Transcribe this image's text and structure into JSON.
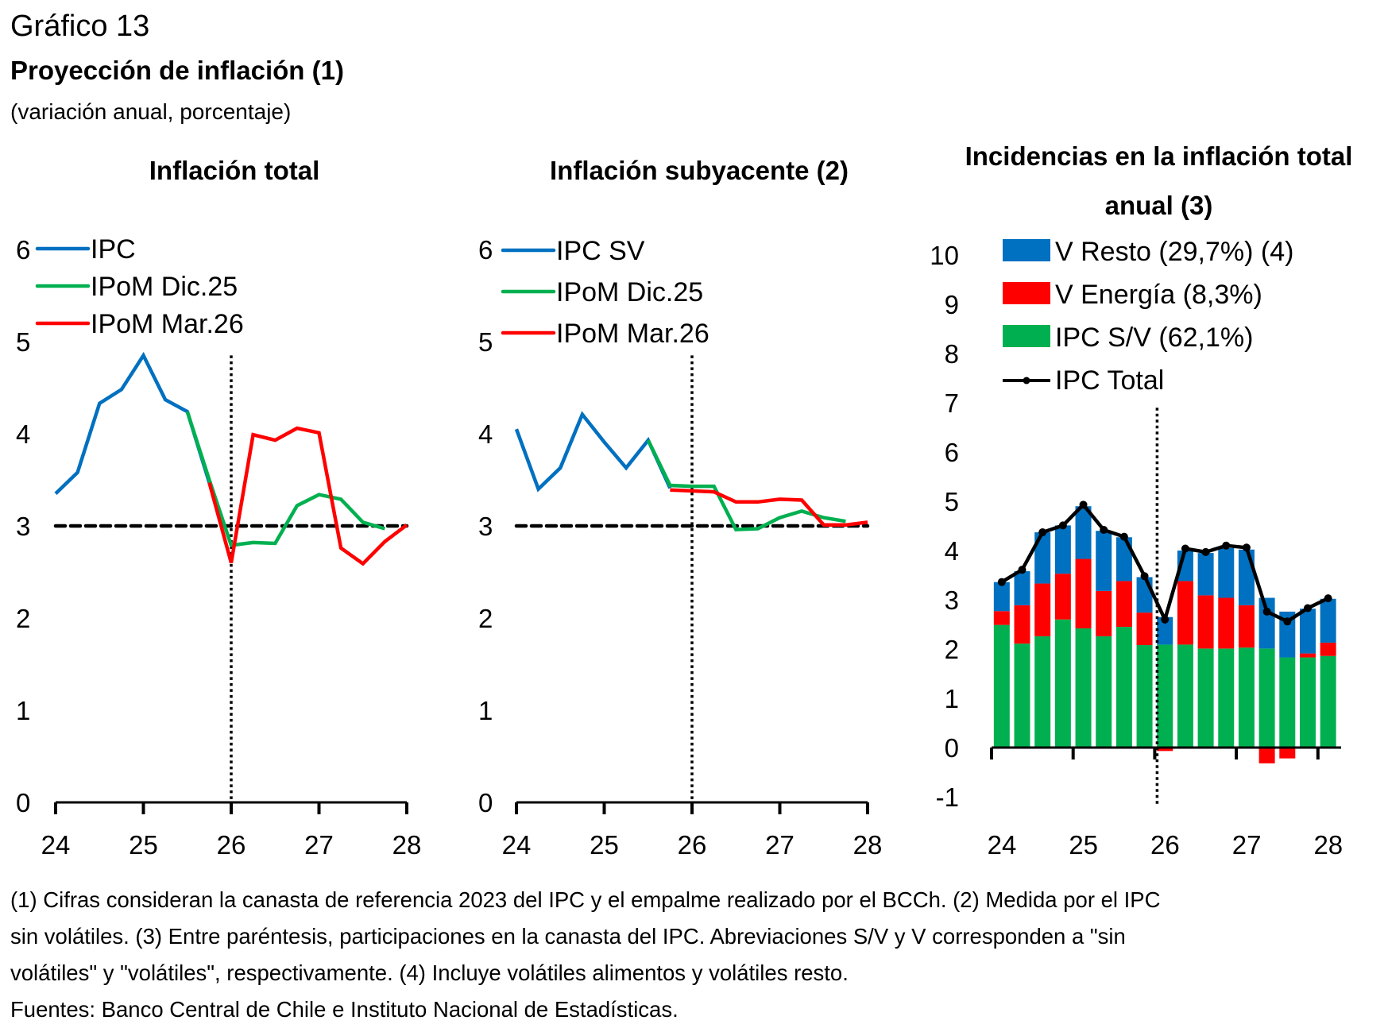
{
  "header": {
    "figure_number": "Gráfico 13",
    "title": "Proyección de inflación (1)",
    "subtitle": "(variación anual, porcentaje)"
  },
  "colors": {
    "blue": "#0070C0",
    "green": "#00B050",
    "red": "#FF0000",
    "black": "#000000"
  },
  "chart_data": [
    {
      "type": "line",
      "title": "Inflación total",
      "xlabel": "",
      "ylabel": "",
      "x_ticks": [
        "24",
        "25",
        "26",
        "27",
        "28"
      ],
      "xlim": [
        24,
        28
      ],
      "y_ticks": [
        "0",
        "1",
        "2",
        "3",
        "4",
        "5",
        "6"
      ],
      "ylim": [
        0,
        6
      ],
      "grid": false,
      "legend_position": "top-left",
      "reference_hline": 3,
      "reference_vline": 26,
      "series": [
        {
          "name": "IPC",
          "color": "blue",
          "x": [
            24.0,
            24.25,
            24.5,
            24.75,
            25.0,
            25.25,
            25.5,
            25.75
          ],
          "values": [
            3.35,
            3.58,
            4.33,
            4.48,
            4.85,
            4.37,
            4.24,
            3.47
          ]
        },
        {
          "name": "IPoM Dic.25",
          "color": "green",
          "x": [
            25.5,
            25.75,
            26.0,
            26.25,
            26.5,
            26.75,
            27.0,
            27.25,
            27.5,
            27.75
          ],
          "values": [
            4.24,
            3.5,
            2.79,
            2.82,
            2.81,
            3.22,
            3.34,
            3.29,
            3.04,
            2.97
          ]
        },
        {
          "name": "IPoM Mar.26",
          "color": "red",
          "x": [
            25.75,
            26.0,
            26.25,
            26.5,
            26.75,
            27.0,
            27.25,
            27.5,
            27.75,
            28.0
          ],
          "values": [
            3.47,
            2.6,
            3.99,
            3.93,
            4.06,
            4.01,
            2.76,
            2.59,
            2.83,
            3.01
          ]
        }
      ]
    },
    {
      "type": "line",
      "title": "Inflación subyacente (2)",
      "xlabel": "",
      "ylabel": "",
      "x_ticks": [
        "24",
        "25",
        "26",
        "27",
        "28"
      ],
      "xlim": [
        24,
        28
      ],
      "y_ticks": [
        "0",
        "1",
        "2",
        "3",
        "4",
        "5",
        "6"
      ],
      "ylim": [
        0,
        6
      ],
      "grid": false,
      "legend_position": "top-left",
      "reference_hline": 3,
      "reference_vline": 26,
      "series": [
        {
          "name": "IPC SV",
          "color": "blue",
          "x": [
            24.0,
            24.25,
            24.5,
            24.75,
            25.0,
            25.25,
            25.5,
            25.75
          ],
          "values": [
            4.05,
            3.4,
            3.63,
            4.21,
            3.91,
            3.63,
            3.93,
            3.41
          ]
        },
        {
          "name": "IPoM Dic.25",
          "color": "green",
          "x": [
            25.5,
            25.75,
            26.0,
            26.25,
            26.5,
            26.75,
            27.0,
            27.25,
            27.5,
            27.75
          ],
          "values": [
            3.93,
            3.44,
            3.43,
            3.43,
            2.96,
            2.97,
            3.09,
            3.16,
            3.09,
            3.05
          ]
        },
        {
          "name": "IPoM Mar.26",
          "color": "red",
          "x": [
            25.75,
            26.0,
            26.25,
            26.5,
            26.75,
            27.0,
            27.25,
            27.5,
            27.75,
            28.0
          ],
          "values": [
            3.39,
            3.38,
            3.37,
            3.26,
            3.26,
            3.29,
            3.28,
            3.01,
            3.01,
            3.04
          ]
        }
      ]
    },
    {
      "type": "bar",
      "stacked": true,
      "title": "Incidencias en la inflación total anual (3)",
      "title_lines": [
        "Incidencias en la inflación total",
        "anual (3)"
      ],
      "xlabel": "",
      "ylabel": "",
      "x_ticks": [
        "24",
        "25",
        "26",
        "27",
        "28"
      ],
      "xlim": [
        24,
        28.25
      ],
      "y_ticks": [
        "-1",
        "0",
        "1",
        "2",
        "3",
        "4",
        "5",
        "6",
        "7",
        "8",
        "9",
        "10"
      ],
      "ylim": [
        -1,
        10
      ],
      "grid": false,
      "legend_position": "top-left",
      "reference_vline": 26,
      "categories": [
        "24.0",
        "24.25",
        "24.5",
        "24.75",
        "25.0",
        "25.25",
        "25.5",
        "25.75",
        "26.0",
        "26.25",
        "26.5",
        "26.75",
        "27.0",
        "27.25",
        "27.5",
        "27.75",
        "28.0"
      ],
      "series": [
        {
          "name": "IPC S/V (62,1%)",
          "color": "green",
          "kind": "bar",
          "values": [
            2.49,
            2.11,
            2.26,
            2.6,
            2.42,
            2.26,
            2.45,
            2.08,
            2.09,
            2.09,
            2.01,
            2.01,
            2.03,
            2.01,
            1.83,
            1.83,
            1.86
          ]
        },
        {
          "name": "V Energía (8,3%)",
          "color": "red",
          "kind": "bar",
          "values": [
            0.28,
            0.78,
            1.07,
            0.93,
            1.41,
            0.92,
            0.93,
            0.66,
            -0.07,
            1.29,
            1.08,
            1.03,
            0.86,
            -0.32,
            -0.22,
            0.08,
            0.27
          ]
        },
        {
          "name": "V Resto (29,7%) (4)",
          "color": "blue",
          "kind": "bar",
          "values": [
            0.59,
            0.69,
            1.04,
            0.98,
            1.07,
            1.22,
            0.89,
            0.72,
            0.56,
            0.62,
            0.86,
            1.01,
            1.13,
            1.03,
            0.93,
            0.91,
            0.89
          ]
        },
        {
          "name": "IPC Total",
          "color": "black",
          "kind": "line-marker",
          "values": [
            3.36,
            3.61,
            4.37,
            4.51,
            4.93,
            4.42,
            4.28,
            3.48,
            2.6,
            4.04,
            3.97,
            4.1,
            4.06,
            2.76,
            2.56,
            2.83,
            3.03
          ]
        }
      ],
      "legend_order": [
        "V Resto (29,7%) (4)",
        "V Energía (8,3%)",
        "IPC S/V (62,1%)",
        "IPC Total"
      ]
    }
  ],
  "footer": {
    "lines": [
      "(1) Cifras consideran la canasta de referencia 2023 del IPC y el empalme realizado por el BCCh. (2) Medida por el IPC",
      "sin volátiles. (3) Entre paréntesis, participaciones en la canasta del IPC. Abreviaciones S/V y V corresponden a \"sin",
      "volátiles\" y \"volátiles\", respectivamente. (4) Incluye volátiles alimentos y volátiles resto.",
      "Fuentes: Banco Central de Chile e Instituto Nacional de Estadísticas."
    ]
  }
}
